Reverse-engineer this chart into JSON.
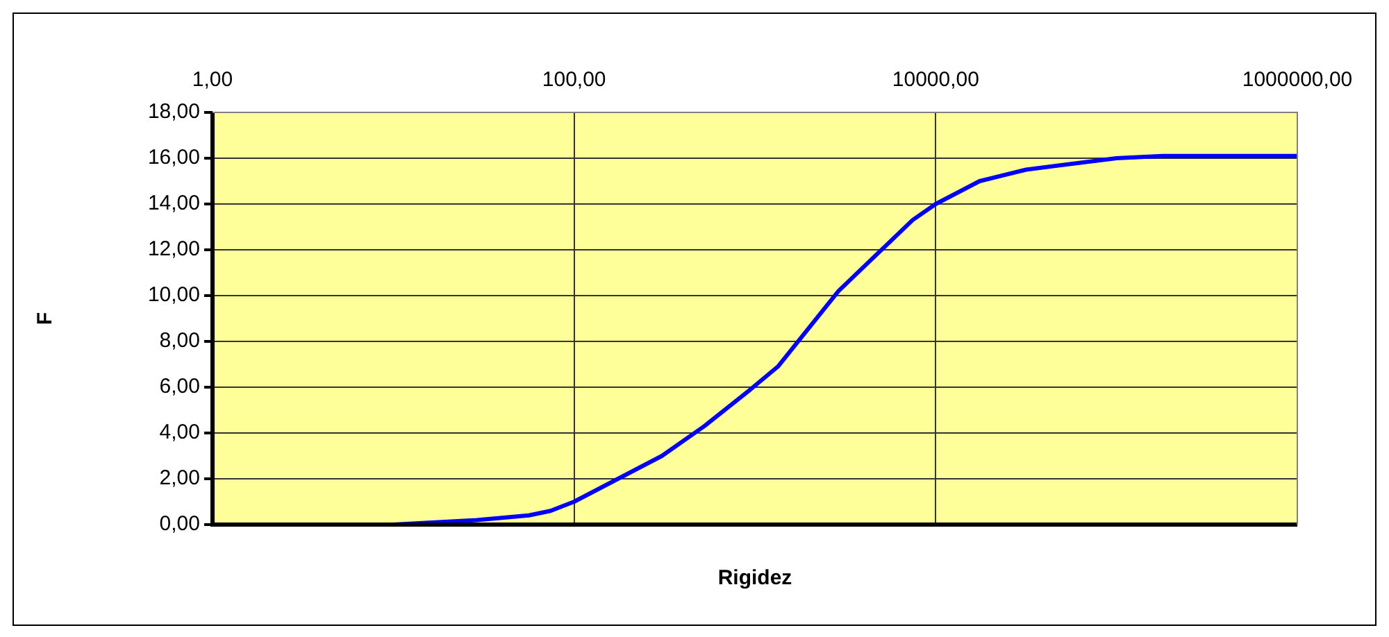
{
  "chart_data": {
    "type": "line",
    "xlabel": "Rigidez",
    "ylabel": "F",
    "x": [
      1,
      10,
      29,
      56,
      74,
      100,
      306,
      525,
      944,
      1340,
      2900,
      7450,
      10000,
      17500,
      31600,
      100000,
      180000,
      1000000
    ],
    "series": [
      {
        "color": "#0000ff",
        "values": [
          0,
          0,
          0.2,
          0.4,
          0.6,
          1.0,
          3.0,
          4.3,
          5.9,
          6.9,
          10.2,
          13.3,
          14.0,
          15.0,
          15.5,
          16.0,
          16.1,
          16.1
        ]
      }
    ],
    "log": "x",
    "xlim": [
      1,
      1000000
    ],
    "xticks": [
      {
        "value": 1,
        "label": "1,00"
      },
      {
        "value": 100,
        "label": "100,00"
      },
      {
        "value": 10000,
        "label": "10000,00"
      },
      {
        "value": 1000000,
        "label": "1000000,00"
      }
    ],
    "ylim": [
      0,
      18
    ],
    "yticks": [
      {
        "value": 0,
        "label": "0,00"
      },
      {
        "value": 2,
        "label": "2,00"
      },
      {
        "value": 4,
        "label": "4,00"
      },
      {
        "value": 6,
        "label": "6,00"
      },
      {
        "value": 8,
        "label": "8,00"
      },
      {
        "value": 10,
        "label": "10,00"
      },
      {
        "value": 12,
        "label": "12,00"
      },
      {
        "value": 14,
        "label": "14,00"
      },
      {
        "value": 16,
        "label": "16,00"
      },
      {
        "value": 18,
        "label": "18,00"
      }
    ],
    "grid": true,
    "legend": false,
    "marker": "none",
    "line_style": "solid"
  }
}
